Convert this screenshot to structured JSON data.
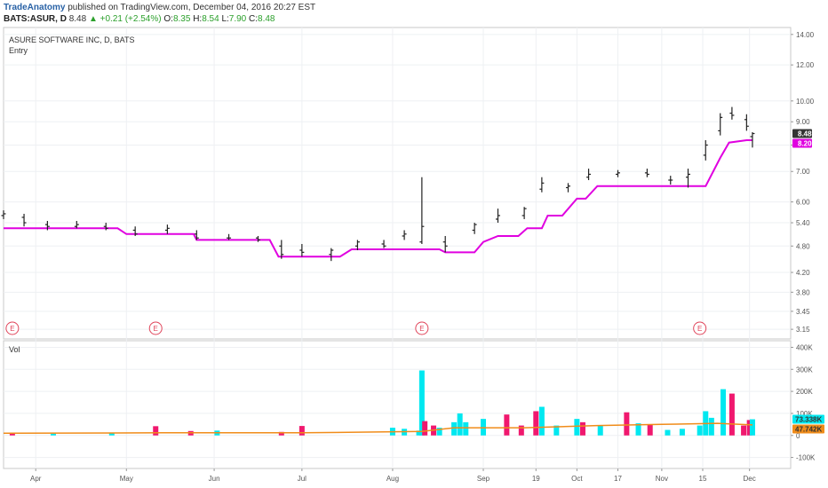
{
  "header": {
    "publisher": "TradeAnatomy",
    "published_text": "published on TradingView.com, December 04, 2016 20:27 EST",
    "symbol": "BATS:ASUR, D",
    "last": "8.48",
    "change": "▲ +0.21 (+2.54%)",
    "o_label": "O:",
    "o_value": "8.35",
    "h_label": "H:",
    "h_value": "8.54",
    "l_label": "L:",
    "l_value": "7.90",
    "c_label": "C:",
    "c_value": "8.48"
  },
  "legend": {
    "title": "ASURE SOFTWARE INC, D, BATS",
    "indicator": "Entry",
    "volume_label": "Vol"
  },
  "tags": {
    "last_price": "8.48",
    "entry_value": "8.20",
    "vol_value": "73.338K",
    "vol_ma_value": "47.742K"
  },
  "colors": {
    "bar": "#222222",
    "entry_line": "#e000e0",
    "vol_up": "#00e8f0",
    "vol_down": "#f0186e",
    "vol_ma": "#f08c1a",
    "event_marker": "#e0445a",
    "last_price_tag": "#333333",
    "entry_tag": "#e000e0",
    "vol_tag": "#00e8f0",
    "vol_ma_tag": "#f08c1a"
  },
  "earnings_markers": {
    "label": "E",
    "at_dates": [
      "2016-03-24",
      "2016-05-12",
      "2016-08-11",
      "2016-11-14"
    ]
  },
  "chart_data": [
    {
      "type": "ohlc",
      "title": "ASURE SOFTWARE INC, D, BATS",
      "price_scale": "log",
      "ylim": [
        3.0,
        14.5
      ],
      "y_ticks": [
        "14.00",
        "12.00",
        "10.00",
        "9.00",
        "8.00",
        "7.00",
        "6.00",
        "5.40",
        "4.80",
        "4.20",
        "3.80",
        "3.45",
        "3.15"
      ],
      "x_ticks": [
        "Apr",
        "May",
        "Jun",
        "Jul",
        "Aug",
        "Sep",
        "19",
        "Oct",
        "17",
        "Nov",
        "15",
        "Dec"
      ],
      "x_tick_dates": [
        "2016-04-01",
        "2016-05-02",
        "2016-06-01",
        "2016-07-01",
        "2016-08-01",
        "2016-09-01",
        "2016-09-19",
        "2016-10-03",
        "2016-10-17",
        "2016-11-01",
        "2016-11-15",
        "2016-12-01"
      ],
      "x_range": [
        "2016-03-21",
        "2016-12-09"
      ],
      "series": [
        {
          "name": "ASUR",
          "description": "daily OHLC bars, approximate closes shown as key points",
          "points": [
            {
              "date": "2016-03-21",
              "open": 5.6,
              "high": 5.75,
              "low": 5.5,
              "close": 5.65
            },
            {
              "date": "2016-03-28",
              "open": 5.55,
              "high": 5.65,
              "low": 5.3,
              "close": 5.4
            },
            {
              "date": "2016-04-05",
              "open": 5.35,
              "high": 5.45,
              "low": 5.2,
              "close": 5.3
            },
            {
              "date": "2016-04-15",
              "open": 5.3,
              "high": 5.45,
              "low": 5.25,
              "close": 5.35
            },
            {
              "date": "2016-04-25",
              "open": 5.3,
              "high": 5.4,
              "low": 5.2,
              "close": 5.25
            },
            {
              "date": "2016-05-05",
              "open": 5.2,
              "high": 5.3,
              "low": 5.05,
              "close": 5.1
            },
            {
              "date": "2016-05-16",
              "open": 5.2,
              "high": 5.35,
              "low": 5.1,
              "close": 5.25
            },
            {
              "date": "2016-05-26",
              "open": 5.1,
              "high": 5.2,
              "low": 4.95,
              "close": 5.0
            },
            {
              "date": "2016-06-06",
              "open": 5.0,
              "high": 5.1,
              "low": 4.95,
              "close": 5.0
            },
            {
              "date": "2016-06-16",
              "open": 5.0,
              "high": 5.05,
              "low": 4.9,
              "close": 4.95
            },
            {
              "date": "2016-06-24",
              "open": 4.8,
              "high": 4.95,
              "low": 4.5,
              "close": 4.6
            },
            {
              "date": "2016-07-01",
              "open": 4.7,
              "high": 4.85,
              "low": 4.55,
              "close": 4.65
            },
            {
              "date": "2016-07-11",
              "open": 4.6,
              "high": 4.75,
              "low": 4.45,
              "close": 4.7
            },
            {
              "date": "2016-07-20",
              "open": 4.8,
              "high": 4.95,
              "low": 4.7,
              "close": 4.9
            },
            {
              "date": "2016-07-29",
              "open": 4.85,
              "high": 4.95,
              "low": 4.75,
              "close": 4.8
            },
            {
              "date": "2016-08-05",
              "open": 5.05,
              "high": 5.2,
              "low": 4.95,
              "close": 5.1
            },
            {
              "date": "2016-08-11",
              "open": 4.9,
              "high": 6.8,
              "low": 4.85,
              "close": 5.3
            },
            {
              "date": "2016-08-19",
              "open": 4.9,
              "high": 5.05,
              "low": 4.65,
              "close": 4.8
            },
            {
              "date": "2016-08-29",
              "open": 5.2,
              "high": 5.4,
              "low": 5.1,
              "close": 5.35
            },
            {
              "date": "2016-09-06",
              "open": 5.5,
              "high": 5.8,
              "low": 5.4,
              "close": 5.6
            },
            {
              "date": "2016-09-15",
              "open": 5.6,
              "high": 5.85,
              "low": 5.5,
              "close": 5.8
            },
            {
              "date": "2016-09-21",
              "open": 6.4,
              "high": 6.8,
              "low": 6.3,
              "close": 6.6
            },
            {
              "date": "2016-09-30",
              "open": 6.45,
              "high": 6.6,
              "low": 6.3,
              "close": 6.5
            },
            {
              "date": "2016-10-07",
              "open": 6.8,
              "high": 7.1,
              "low": 6.7,
              "close": 6.9
            },
            {
              "date": "2016-10-17",
              "open": 6.9,
              "high": 7.05,
              "low": 6.8,
              "close": 6.95
            },
            {
              "date": "2016-10-27",
              "open": 6.95,
              "high": 7.1,
              "low": 6.8,
              "close": 6.9
            },
            {
              "date": "2016-11-04",
              "open": 6.7,
              "high": 6.85,
              "low": 6.55,
              "close": 6.7
            },
            {
              "date": "2016-11-10",
              "open": 6.8,
              "high": 7.1,
              "low": 6.45,
              "close": 6.9
            },
            {
              "date": "2016-11-16",
              "open": 7.6,
              "high": 8.2,
              "low": 7.4,
              "close": 8.0
            },
            {
              "date": "2016-11-21",
              "open": 8.6,
              "high": 9.4,
              "low": 8.4,
              "close": 9.2
            },
            {
              "date": "2016-11-25",
              "open": 9.4,
              "high": 9.7,
              "low": 9.1,
              "close": 9.3
            },
            {
              "date": "2016-11-30",
              "open": 9.1,
              "high": 9.35,
              "low": 8.6,
              "close": 8.8
            },
            {
              "date": "2016-12-02",
              "open": 8.35,
              "high": 8.54,
              "low": 7.9,
              "close": 8.48
            }
          ]
        },
        {
          "name": "Entry",
          "description": "step line",
          "points": [
            {
              "date": "2016-03-21",
              "value": 5.25
            },
            {
              "date": "2016-04-29",
              "value": 5.25
            },
            {
              "date": "2016-05-02",
              "value": 5.1
            },
            {
              "date": "2016-05-25",
              "value": 5.1
            },
            {
              "date": "2016-05-26",
              "value": 4.95
            },
            {
              "date": "2016-06-20",
              "value": 4.95
            },
            {
              "date": "2016-06-23",
              "value": 4.55
            },
            {
              "date": "2016-07-14",
              "value": 4.55
            },
            {
              "date": "2016-07-18",
              "value": 4.72
            },
            {
              "date": "2016-08-17",
              "value": 4.72
            },
            {
              "date": "2016-08-19",
              "value": 4.65
            },
            {
              "date": "2016-08-29",
              "value": 4.65
            },
            {
              "date": "2016-09-01",
              "value": 4.9
            },
            {
              "date": "2016-09-06",
              "value": 5.05
            },
            {
              "date": "2016-09-13",
              "value": 5.05
            },
            {
              "date": "2016-09-16",
              "value": 5.25
            },
            {
              "date": "2016-09-21",
              "value": 5.25
            },
            {
              "date": "2016-09-23",
              "value": 5.6
            },
            {
              "date": "2016-09-28",
              "value": 5.6
            },
            {
              "date": "2016-10-03",
              "value": 6.1
            },
            {
              "date": "2016-10-06",
              "value": 6.1
            },
            {
              "date": "2016-10-10",
              "value": 6.5
            },
            {
              "date": "2016-11-10",
              "value": 6.5
            },
            {
              "date": "2016-11-16",
              "value": 6.5
            },
            {
              "date": "2016-11-21",
              "value": 7.5
            },
            {
              "date": "2016-11-24",
              "value": 8.1
            },
            {
              "date": "2016-11-30",
              "value": 8.2
            },
            {
              "date": "2016-12-02",
              "value": 8.2
            }
          ]
        }
      ]
    },
    {
      "type": "bar",
      "title": "Vol",
      "ylim": [
        -150000,
        430000
      ],
      "y_ticks": [
        "400K",
        "300K",
        "200K",
        "100K",
        "0",
        "-100K"
      ],
      "y_tick_values": [
        400000,
        300000,
        200000,
        100000,
        0,
        -100000
      ],
      "series": [
        {
          "name": "Vol",
          "description": "daily volume; direction up = cyan, down = magenta",
          "points": [
            {
              "date": "2016-03-24",
              "value": 10000,
              "direction": "down"
            },
            {
              "date": "2016-04-07",
              "value": 8000,
              "direction": "up"
            },
            {
              "date": "2016-04-27",
              "value": 12000,
              "direction": "up"
            },
            {
              "date": "2016-05-12",
              "value": 42000,
              "direction": "down"
            },
            {
              "date": "2016-05-24",
              "value": 20000,
              "direction": "down"
            },
            {
              "date": "2016-06-02",
              "value": 22000,
              "direction": "up"
            },
            {
              "date": "2016-06-24",
              "value": 16000,
              "direction": "down"
            },
            {
              "date": "2016-07-01",
              "value": 43000,
              "direction": "down"
            },
            {
              "date": "2016-08-01",
              "value": 35000,
              "direction": "up"
            },
            {
              "date": "2016-08-05",
              "value": 30000,
              "direction": "up"
            },
            {
              "date": "2016-08-10",
              "value": 22000,
              "direction": "up"
            },
            {
              "date": "2016-08-11",
              "value": 295000,
              "direction": "up"
            },
            {
              "date": "2016-08-12",
              "value": 65000,
              "direction": "down"
            },
            {
              "date": "2016-08-15",
              "value": 45000,
              "direction": "down"
            },
            {
              "date": "2016-08-17",
              "value": 35000,
              "direction": "up"
            },
            {
              "date": "2016-08-22",
              "value": 60000,
              "direction": "up"
            },
            {
              "date": "2016-08-24",
              "value": 100000,
              "direction": "up"
            },
            {
              "date": "2016-08-26",
              "value": 60000,
              "direction": "up"
            },
            {
              "date": "2016-09-01",
              "value": 75000,
              "direction": "up"
            },
            {
              "date": "2016-09-09",
              "value": 95000,
              "direction": "down"
            },
            {
              "date": "2016-09-14",
              "value": 45000,
              "direction": "down"
            },
            {
              "date": "2016-09-19",
              "value": 110000,
              "direction": "down"
            },
            {
              "date": "2016-09-21",
              "value": 130000,
              "direction": "up"
            },
            {
              "date": "2016-09-26",
              "value": 45000,
              "direction": "up"
            },
            {
              "date": "2016-10-03",
              "value": 75000,
              "direction": "up"
            },
            {
              "date": "2016-10-05",
              "value": 60000,
              "direction": "down"
            },
            {
              "date": "2016-10-11",
              "value": 45000,
              "direction": "up"
            },
            {
              "date": "2016-10-20",
              "value": 105000,
              "direction": "down"
            },
            {
              "date": "2016-10-24",
              "value": 55000,
              "direction": "up"
            },
            {
              "date": "2016-10-28",
              "value": 50000,
              "direction": "down"
            },
            {
              "date": "2016-11-03",
              "value": 25000,
              "direction": "up"
            },
            {
              "date": "2016-11-08",
              "value": 30000,
              "direction": "up"
            },
            {
              "date": "2016-11-14",
              "value": 45000,
              "direction": "up"
            },
            {
              "date": "2016-11-16",
              "value": 110000,
              "direction": "up"
            },
            {
              "date": "2016-11-18",
              "value": 80000,
              "direction": "up"
            },
            {
              "date": "2016-11-22",
              "value": 210000,
              "direction": "up"
            },
            {
              "date": "2016-11-25",
              "value": 190000,
              "direction": "down"
            },
            {
              "date": "2016-11-29",
              "value": 45000,
              "direction": "down"
            },
            {
              "date": "2016-12-01",
              "value": 70000,
              "direction": "down"
            },
            {
              "date": "2016-12-02",
              "value": 73338,
              "direction": "up"
            }
          ]
        },
        {
          "name": "Vol MA",
          "description": "volume moving average line",
          "points": [
            {
              "date": "2016-03-21",
              "value": 10000
            },
            {
              "date": "2016-05-15",
              "value": 12000
            },
            {
              "date": "2016-07-01",
              "value": 12000
            },
            {
              "date": "2016-08-11",
              "value": 18000
            },
            {
              "date": "2016-08-22",
              "value": 35000
            },
            {
              "date": "2016-09-15",
              "value": 35000
            },
            {
              "date": "2016-10-10",
              "value": 45000
            },
            {
              "date": "2016-11-01",
              "value": 50000
            },
            {
              "date": "2016-11-20",
              "value": 55000
            },
            {
              "date": "2016-12-02",
              "value": 47742
            }
          ]
        }
      ]
    }
  ]
}
